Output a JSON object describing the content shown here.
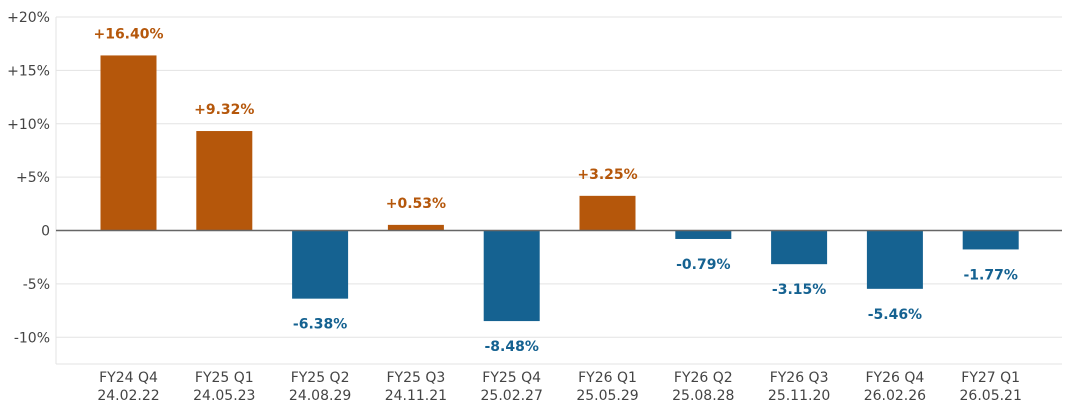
{
  "chart_data": {
    "type": "bar",
    "categories": [
      {
        "quarter": "FY24 Q4",
        "date": "24.02.22"
      },
      {
        "quarter": "FY25 Q1",
        "date": "24.05.23"
      },
      {
        "quarter": "FY25 Q2",
        "date": "24.08.29"
      },
      {
        "quarter": "FY25 Q3",
        "date": "24.11.21"
      },
      {
        "quarter": "FY25 Q4",
        "date": "25.02.27"
      },
      {
        "quarter": "FY26 Q1",
        "date": "25.05.29"
      },
      {
        "quarter": "FY26 Q2",
        "date": "25.08.28"
      },
      {
        "quarter": "FY26 Q3",
        "date": "25.11.20"
      },
      {
        "quarter": "FY26 Q4",
        "date": "26.02.26"
      },
      {
        "quarter": "FY27 Q1",
        "date": "26.05.21"
      }
    ],
    "values": [
      16.4,
      9.32,
      -6.38,
      0.53,
      -8.48,
      3.25,
      -0.79,
      -3.15,
      -5.46,
      -1.77
    ],
    "data_labels": [
      "+16.40%",
      "+9.32%",
      "-6.38%",
      "+0.53%",
      "-8.48%",
      "+3.25%",
      "-0.79%",
      "-3.15%",
      "-5.46%",
      "-1.77%"
    ],
    "title": "",
    "xlabel": "",
    "ylabel": "",
    "ylim": [
      -12.5,
      20
    ],
    "yticks": [
      20,
      15,
      10,
      5,
      0,
      -5,
      -10
    ],
    "ytick_labels": [
      "+20%",
      "+15%",
      "+10%",
      "+5%",
      "0",
      "-5%",
      "-10%"
    ],
    "grid": true,
    "colors": {
      "positive": "#b5570b",
      "negative": "#156291",
      "grid": "#e3e3e3",
      "zero_line": "#666666"
    }
  }
}
